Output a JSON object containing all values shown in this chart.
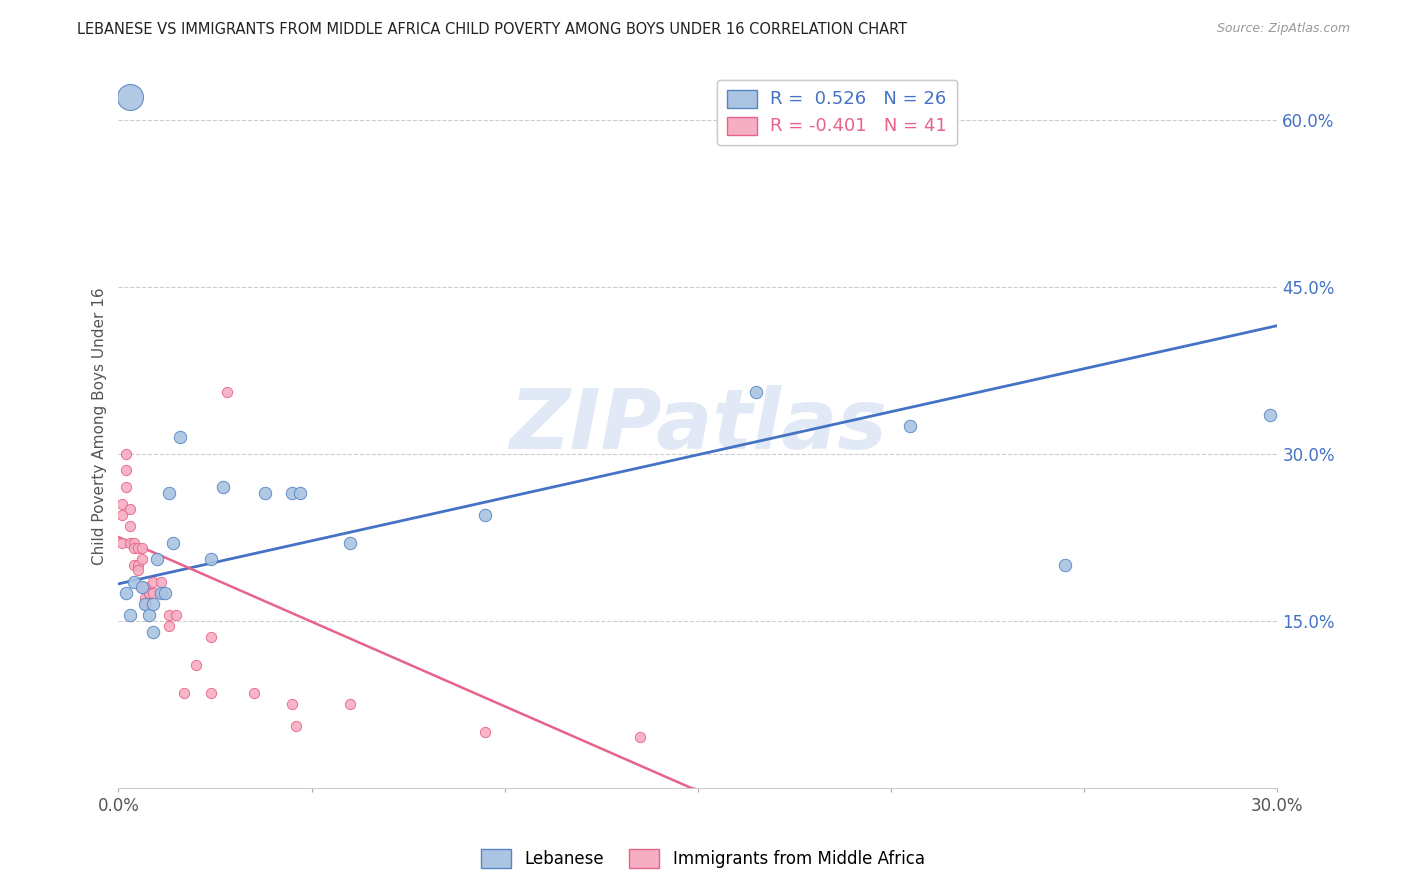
{
  "title": "LEBANESE VS IMMIGRANTS FROM MIDDLE AFRICA CHILD POVERTY AMONG BOYS UNDER 16 CORRELATION CHART",
  "source": "Source: ZipAtlas.com",
  "ylabel": "Child Poverty Among Boys Under 16",
  "xlim": [
    0.0,
    0.3
  ],
  "ylim": [
    0.0,
    0.65
  ],
  "xticks": [
    0.0,
    0.05,
    0.1,
    0.15,
    0.2,
    0.25,
    0.3
  ],
  "xtick_labels": [
    "0.0%",
    "",
    "",
    "",
    "",
    "",
    "30.0%"
  ],
  "yticks_right": [
    0.15,
    0.3,
    0.45,
    0.6
  ],
  "ytick_labels_right": [
    "15.0%",
    "30.0%",
    "45.0%",
    "60.0%"
  ],
  "blue_color": "#aac4e2",
  "pink_color": "#f5aec2",
  "blue_edge_color": "#5585c5",
  "pink_edge_color": "#e8638a",
  "blue_line_color": "#4472C4",
  "pink_line_color": "#e8638a",
  "blue_points": [
    [
      0.003,
      0.62
    ],
    [
      0.002,
      0.175
    ],
    [
      0.003,
      0.155
    ],
    [
      0.004,
      0.185
    ],
    [
      0.006,
      0.18
    ],
    [
      0.007,
      0.165
    ],
    [
      0.008,
      0.155
    ],
    [
      0.009,
      0.14
    ],
    [
      0.009,
      0.165
    ],
    [
      0.01,
      0.205
    ],
    [
      0.011,
      0.175
    ],
    [
      0.012,
      0.175
    ],
    [
      0.013,
      0.265
    ],
    [
      0.014,
      0.22
    ],
    [
      0.016,
      0.315
    ],
    [
      0.024,
      0.205
    ],
    [
      0.027,
      0.27
    ],
    [
      0.038,
      0.265
    ],
    [
      0.045,
      0.265
    ],
    [
      0.047,
      0.265
    ],
    [
      0.06,
      0.22
    ],
    [
      0.095,
      0.245
    ],
    [
      0.165,
      0.355
    ],
    [
      0.205,
      0.325
    ],
    [
      0.245,
      0.2
    ],
    [
      0.298,
      0.335
    ]
  ],
  "pink_points": [
    [
      0.001,
      0.22
    ],
    [
      0.001,
      0.245
    ],
    [
      0.001,
      0.255
    ],
    [
      0.002,
      0.27
    ],
    [
      0.002,
      0.285
    ],
    [
      0.002,
      0.3
    ],
    [
      0.003,
      0.25
    ],
    [
      0.003,
      0.235
    ],
    [
      0.003,
      0.22
    ],
    [
      0.004,
      0.22
    ],
    [
      0.004,
      0.215
    ],
    [
      0.004,
      0.2
    ],
    [
      0.005,
      0.215
    ],
    [
      0.005,
      0.2
    ],
    [
      0.005,
      0.195
    ],
    [
      0.006,
      0.215
    ],
    [
      0.006,
      0.205
    ],
    [
      0.006,
      0.18
    ],
    [
      0.007,
      0.18
    ],
    [
      0.007,
      0.17
    ],
    [
      0.007,
      0.165
    ],
    [
      0.008,
      0.175
    ],
    [
      0.008,
      0.175
    ],
    [
      0.009,
      0.185
    ],
    [
      0.009,
      0.175
    ],
    [
      0.011,
      0.185
    ],
    [
      0.011,
      0.175
    ],
    [
      0.013,
      0.155
    ],
    [
      0.013,
      0.145
    ],
    [
      0.015,
      0.155
    ],
    [
      0.017,
      0.085
    ],
    [
      0.02,
      0.11
    ],
    [
      0.024,
      0.135
    ],
    [
      0.024,
      0.085
    ],
    [
      0.028,
      0.355
    ],
    [
      0.035,
      0.085
    ],
    [
      0.045,
      0.075
    ],
    [
      0.046,
      0.055
    ],
    [
      0.06,
      0.075
    ],
    [
      0.095,
      0.05
    ],
    [
      0.135,
      0.045
    ]
  ],
  "blue_trendline": [
    [
      0.0,
      0.183
    ],
    [
      0.3,
      0.415
    ]
  ],
  "pink_trendline_solid": [
    [
      0.0,
      0.225
    ],
    [
      0.148,
      0.0
    ]
  ],
  "pink_trendline_dashed": [
    [
      0.148,
      0.0
    ],
    [
      0.3,
      -0.12
    ]
  ],
  "watermark_text": "ZIPatlas",
  "legend_blue_label": "R =  0.526   N = 26",
  "legend_pink_label": "R = -0.401   N = 41",
  "legend_blue_label2": "Lebanese",
  "legend_pink_label2": "Immigrants from Middle Africa",
  "blue_marker_size": 80,
  "pink_marker_size": 55,
  "large_blue_size": 350
}
